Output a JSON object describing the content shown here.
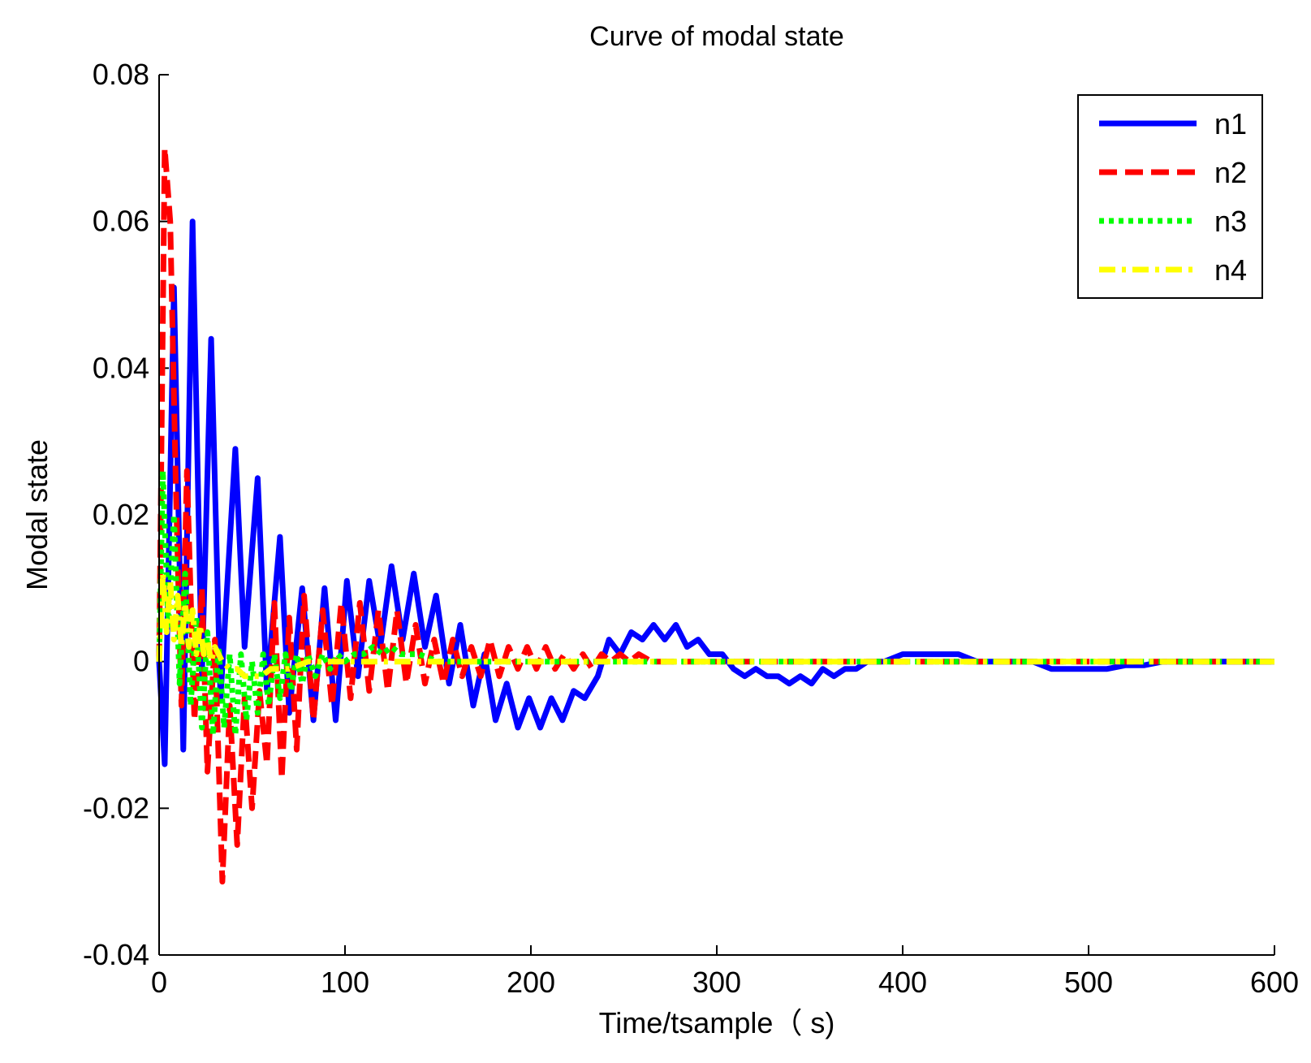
{
  "chart_data": {
    "type": "line",
    "title": "Curve of modal state",
    "xlabel": "Time/tsample（ s)",
    "ylabel": "Modal state",
    "xlim": [
      0,
      600
    ],
    "ylim": [
      -0.04,
      0.08
    ],
    "xticks": [
      0,
      100,
      200,
      300,
      400,
      500,
      600
    ],
    "xtick_labels": [
      "0",
      "100",
      "200",
      "300",
      "400",
      "500",
      "600"
    ],
    "yticks": [
      -0.04,
      -0.02,
      0,
      0.02,
      0.04,
      0.06,
      0.08
    ],
    "ytick_labels": [
      "-0.04",
      "-0.02",
      "0",
      "0.02",
      "0.04",
      "0.06",
      "0.08"
    ],
    "grid": false,
    "legend_position": "top-right",
    "series": [
      {
        "name": "n1",
        "color": "#0000ff",
        "style": "solid",
        "x": [
          0,
          3,
          8,
          13,
          18,
          23,
          28,
          33,
          41,
          46,
          53,
          58,
          65,
          70,
          77,
          83,
          89,
          95,
          101,
          107,
          113,
          119,
          125,
          131,
          137,
          143,
          149,
          156,
          162,
          169,
          175,
          181,
          187,
          193,
          199,
          205,
          211,
          217,
          223,
          229,
          236,
          242,
          248,
          254,
          260,
          266,
          272,
          278,
          284,
          290,
          296,
          303,
          309,
          315,
          321,
          327,
          333,
          339,
          345,
          351,
          357,
          363,
          369,
          375,
          381,
          390,
          400,
          410,
          420,
          430,
          440,
          450,
          460,
          470,
          480,
          490,
          500,
          510,
          520,
          530,
          540,
          550,
          560,
          570,
          580,
          590,
          600
        ],
        "y": [
          0.0,
          -0.014,
          0.051,
          -0.012,
          0.06,
          -0.002,
          0.044,
          -0.005,
          0.029,
          0.002,
          0.025,
          -0.004,
          0.017,
          -0.007,
          0.01,
          -0.008,
          0.01,
          -0.008,
          0.011,
          -0.002,
          0.011,
          0.002,
          0.013,
          0.003,
          0.012,
          0.002,
          0.009,
          -0.003,
          0.005,
          -0.006,
          0.001,
          -0.008,
          -0.003,
          -0.009,
          -0.005,
          -0.009,
          -0.005,
          -0.008,
          -0.004,
          -0.005,
          -0.002,
          0.003,
          0.001,
          0.004,
          0.003,
          0.005,
          0.003,
          0.005,
          0.002,
          0.003,
          0.001,
          0.001,
          -0.001,
          -0.002,
          -0.001,
          -0.002,
          -0.002,
          -0.003,
          -0.002,
          -0.003,
          -0.001,
          -0.002,
          -0.001,
          -0.001,
          0.0,
          0.0,
          0.001,
          0.001,
          0.001,
          0.001,
          0.0,
          0.0,
          0.0,
          0.0,
          -0.001,
          -0.001,
          -0.001,
          -0.001,
          -0.0005,
          -0.0005,
          0.0,
          0.0,
          0.0,
          0.0,
          0.0,
          0.0,
          0.0
        ]
      },
      {
        "name": "n2",
        "color": "#ff0000",
        "style": "dashed",
        "x": [
          0,
          3,
          6,
          9,
          12,
          15,
          19,
          23,
          26,
          30,
          34,
          38,
          42,
          46,
          50,
          54,
          58,
          62,
          66,
          70,
          74,
          78,
          83,
          88,
          93,
          98,
          103,
          108,
          113,
          118,
          123,
          128,
          133,
          138,
          143,
          148,
          153,
          158,
          163,
          168,
          173,
          178,
          183,
          188,
          193,
          198,
          203,
          208,
          213,
          218,
          223,
          228,
          233,
          238,
          243,
          248,
          253,
          258,
          265,
          275,
          285,
          295,
          305,
          315,
          325,
          335,
          345,
          355,
          365,
          380,
          400,
          420,
          440,
          460,
          480,
          500,
          520,
          540,
          560,
          580,
          600
        ],
        "y": [
          0.0,
          0.07,
          0.06,
          0.024,
          -0.006,
          0.026,
          -0.008,
          0.01,
          -0.015,
          0.003,
          -0.03,
          -0.006,
          -0.025,
          -0.005,
          -0.02,
          -0.004,
          -0.014,
          0.008,
          -0.016,
          0.006,
          -0.012,
          0.009,
          -0.008,
          0.007,
          -0.006,
          0.008,
          -0.005,
          0.008,
          -0.004,
          0.007,
          -0.004,
          0.007,
          -0.003,
          0.005,
          -0.003,
          0.003,
          -0.003,
          0.003,
          -0.002,
          0.002,
          -0.002,
          0.003,
          -0.002,
          0.002,
          -0.001,
          0.002,
          -0.001,
          0.002,
          -0.001,
          0.001,
          -0.001,
          0.001,
          -0.001,
          0.001,
          0.0,
          0.001,
          0.0,
          0.001,
          0.0,
          0.0,
          0.0,
          0.0,
          0.0,
          0.0,
          0.0,
          0.0,
          0.0,
          0.0,
          0.0,
          0.0,
          0.0,
          0.0,
          0.0,
          0.0,
          0.0,
          0.0,
          0.0,
          0.0,
          0.0,
          0.0,
          0.0
        ]
      },
      {
        "name": "n3",
        "color": "#00ff00",
        "style": "dotted",
        "x": [
          0,
          2,
          5,
          8,
          11,
          14,
          17,
          20,
          23,
          26,
          29,
          32,
          35,
          38,
          41,
          44,
          47,
          50,
          53,
          56,
          59,
          62,
          65,
          68,
          71,
          74,
          77,
          80,
          84,
          88,
          92,
          96,
          100,
          105,
          110,
          115,
          120,
          125,
          130,
          140,
          150,
          160,
          170,
          180,
          190,
          200,
          220,
          240,
          260,
          280,
          300,
          330,
          360,
          400,
          450,
          500,
          550,
          600
        ],
        "y": [
          0.0,
          0.026,
          0.005,
          0.02,
          -0.003,
          0.012,
          -0.006,
          0.006,
          -0.009,
          0.004,
          -0.01,
          0.002,
          -0.009,
          0.001,
          -0.01,
          0.001,
          -0.008,
          0.0,
          -0.007,
          0.001,
          -0.006,
          0.001,
          -0.005,
          0.001,
          -0.004,
          0.001,
          -0.003,
          0.001,
          -0.002,
          0.001,
          -0.001,
          0.001,
          0.0,
          0.001,
          0.001,
          0.002,
          0.001,
          0.002,
          0.001,
          0.001,
          0.0,
          0.0,
          0.0,
          0.0,
          0.0,
          0.0,
          0.0,
          0.0,
          0.0,
          0.0,
          0.0,
          0.0,
          0.0,
          0.0,
          0.0,
          0.0,
          0.0,
          0.0
        ]
      },
      {
        "name": "n4",
        "color": "#ffff00",
        "style": "dashdot",
        "x": [
          0,
          2,
          4,
          6,
          8,
          10,
          12,
          14,
          16,
          18,
          20,
          22,
          24,
          26,
          28,
          30,
          34,
          38,
          42,
          46,
          50,
          55,
          60,
          65,
          70,
          80,
          90,
          100,
          110,
          120,
          130,
          140,
          160,
          180,
          200,
          250,
          300,
          350,
          400,
          450,
          500,
          550,
          600
        ],
        "y": [
          0.0,
          0.012,
          0.004,
          0.011,
          0.003,
          0.009,
          0.002,
          0.008,
          0.002,
          0.007,
          0.001,
          0.005,
          0.001,
          0.003,
          0.0,
          0.002,
          0.0,
          -0.001,
          -0.001,
          -0.002,
          -0.002,
          -0.002,
          -0.001,
          -0.001,
          -0.001,
          0.0,
          0.0,
          0.0,
          0.0,
          0.0,
          0.0,
          0.0,
          0.0,
          0.0,
          0.0,
          0.0,
          0.0,
          0.0,
          0.0,
          0.0,
          0.0,
          0.0,
          0.0
        ]
      }
    ]
  }
}
